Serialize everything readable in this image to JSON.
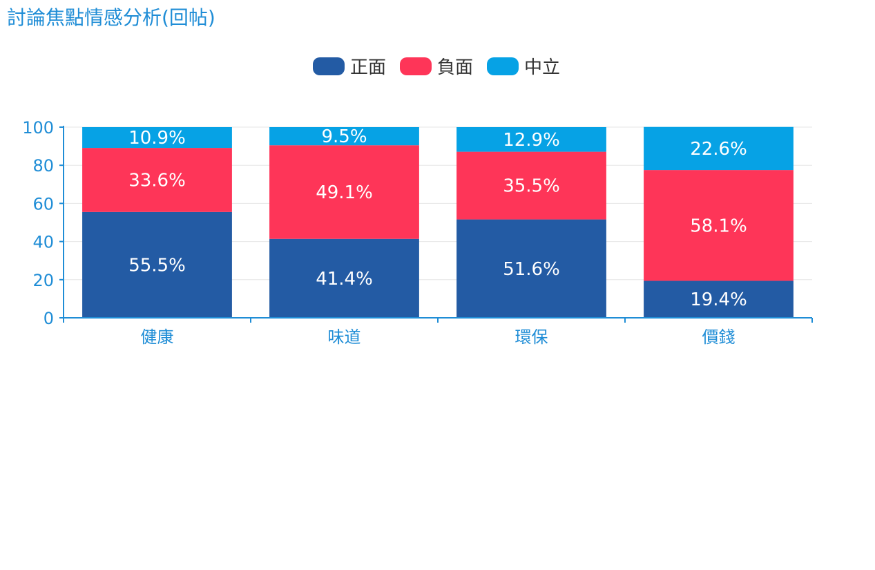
{
  "chart_data": {
    "type": "bar",
    "stacked": true,
    "title": "討論焦點情感分析(回帖)",
    "categories": [
      "健康",
      "味道",
      "環保",
      "價錢"
    ],
    "series": [
      {
        "name": "正面",
        "color": "#235ba4",
        "values": [
          55.5,
          41.4,
          51.6,
          19.4
        ],
        "labels": [
          "55.5%",
          "41.4%",
          "51.6%",
          "19.4%"
        ]
      },
      {
        "name": "負面",
        "color": "#fe3558",
        "values": [
          33.6,
          49.1,
          35.5,
          58.1
        ],
        "labels": [
          "33.6%",
          "49.1%",
          "35.5%",
          "58.1%"
        ]
      },
      {
        "name": "中立",
        "color": "#06a2e5",
        "values": [
          10.9,
          9.5,
          12.9,
          22.6
        ],
        "labels": [
          "10.9%",
          "9.5%",
          "12.9%",
          "22.6%"
        ]
      }
    ],
    "ylim": [
      0,
      100
    ],
    "yticks": [
      "0",
      "20",
      "40",
      "60",
      "80",
      "100"
    ],
    "xlabel": "",
    "ylabel": "",
    "legend_position": "top-center",
    "grid": true
  }
}
